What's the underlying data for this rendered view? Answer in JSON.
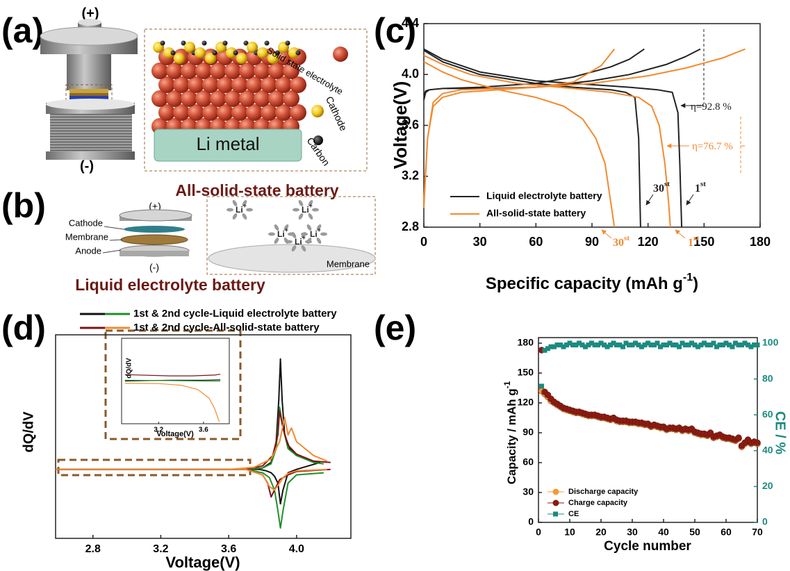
{
  "panels": {
    "a": {
      "label": "(a)",
      "positive": "(+)",
      "negative": "(-)",
      "anode": "Li metal",
      "electrolyte": "Solid state electrolyte",
      "cathode": "Cathode",
      "carbon": "Carbon",
      "caption": "All-solid-state battery"
    },
    "b": {
      "label": "(b)",
      "positive": "(+)",
      "negative": "(-)",
      "cathode": "Cathode",
      "membrane": "Membrane",
      "anode": "Anode",
      "ion": "Li",
      "ion_charge": "+",
      "inset_membrane": "Membrane",
      "caption": "Liquid electrolyte battery"
    }
  },
  "chart_data": [
    {
      "type": "line",
      "label": "(c)",
      "xlabel": "Specific capacity (mAh g",
      "xlabel_sup": "-1",
      "xlabel_end": ")",
      "ylabel": "Voltage(V)",
      "xlim": [
        0,
        180
      ],
      "xticks": [
        0,
        30,
        60,
        90,
        120,
        150,
        180
      ],
      "ylim": [
        2.8,
        4.4
      ],
      "yticks": [
        2.8,
        3.2,
        3.6,
        {
          "value": 4,
          "label": "4.0"
        },
        4.4
      ],
      "legend": "lower left",
      "series": [
        {
          "name": "Liquid electrolyte battery",
          "color": "#222222",
          "x": [
            0,
            1,
            3,
            10,
            30,
            60,
            90,
            110,
            130,
            140,
            148,
            null,
            0,
            10,
            30,
            60,
            90,
            110,
            125,
            133,
            136,
            137,
            138,
            null,
            0,
            1,
            3,
            10,
            30,
            60,
            80,
            100,
            110,
            118,
            null,
            0,
            10,
            30,
            60,
            80,
            100,
            108,
            113,
            115,
            116
          ],
          "values": [
            3.8,
            3.86,
            3.88,
            3.89,
            3.89,
            3.9,
            3.95,
            4.0,
            4.08,
            4.14,
            4.2,
            null,
            4.2,
            4.12,
            4.02,
            3.95,
            3.92,
            3.9,
            3.88,
            3.86,
            3.7,
            3.3,
            2.8,
            null,
            3.84,
            3.87,
            3.88,
            3.89,
            3.9,
            3.93,
            3.98,
            4.06,
            4.12,
            4.2,
            null,
            4.19,
            4.1,
            4.0,
            3.93,
            3.9,
            3.88,
            3.86,
            3.82,
            3.5,
            2.8
          ]
        },
        {
          "name": "All-solid-state battery",
          "color": "#f28a30",
          "x": [
            0,
            2,
            5,
            10,
            20,
            40,
            60,
            90,
            120,
            140,
            160,
            172,
            null,
            0,
            10,
            25,
            50,
            80,
            100,
            115,
            122,
            126,
            129,
            131,
            132,
            null,
            0,
            2,
            5,
            10,
            20,
            40,
            60,
            80,
            95,
            102,
            null,
            0,
            10,
            20,
            40,
            60,
            75,
            85,
            92,
            97,
            100,
            102
          ],
          "values": [
            2.95,
            3.5,
            3.78,
            3.85,
            3.88,
            3.89,
            3.9,
            3.93,
            3.99,
            4.05,
            4.13,
            4.2,
            null,
            4.15,
            4.08,
            4.0,
            3.93,
            3.89,
            3.86,
            3.82,
            3.75,
            3.6,
            3.3,
            3.0,
            2.8,
            null,
            3.0,
            3.5,
            3.75,
            3.82,
            3.86,
            3.88,
            3.9,
            3.94,
            4.07,
            4.2,
            null,
            4.1,
            4.02,
            3.96,
            3.88,
            3.82,
            3.75,
            3.65,
            3.5,
            3.3,
            3.0,
            2.8
          ]
        }
      ],
      "annotations": [
        {
          "text": "η=92.8 %",
          "color": "#222222"
        },
        {
          "text": "η=76.7 %",
          "color": "#f28a30"
        },
        {
          "text": "30",
          "sup": "st",
          "color": "#222222"
        },
        {
          "text": "1",
          "sup": "st",
          "color": "#222222"
        },
        {
          "text": "30",
          "sup": "st",
          "color": "#f28a30"
        },
        {
          "text": "1",
          "sup": "st",
          "color": "#f28a30"
        }
      ]
    },
    {
      "type": "line",
      "label": "(d)",
      "xlabel": "Voltage(V)",
      "ylabel": "dQ/dV",
      "xlim": [
        2.58,
        4.32
      ],
      "xticks": [
        2.8,
        3.2,
        3.6,
        {
          "value": 4,
          "label": "4.0"
        }
      ],
      "ylim": [
        -1,
        1.95
      ],
      "legend": [
        {
          "label": "1st & 2nd cycle-Liquid electrolyte battery",
          "colors": [
            "#111111",
            "#1f8f2a"
          ]
        },
        {
          "label": "1st & 2nd cycle-All-solid-state battery",
          "colors": [
            "#7b1416",
            "#f28a30"
          ]
        }
      ],
      "series": [
        {
          "color": "#111111",
          "x": [
            2.58,
            3.7,
            3.8,
            3.85,
            3.88,
            3.895,
            3.905,
            3.915,
            3.93,
            3.96,
            4.0,
            4.1,
            4.14,
            null,
            4.14,
            4.0,
            3.95,
            3.92,
            3.905,
            3.89,
            3.87,
            3.85,
            3.82,
            3.78,
            3.6,
            2.58
          ],
          "values": [
            0,
            0,
            0.02,
            0.1,
            0.4,
            1.0,
            1.6,
            1.0,
            0.5,
            0.3,
            0.2,
            0.12,
            0.1,
            null,
            0.1,
            0,
            -0.05,
            -0.3,
            -0.5,
            -0.2,
            -0.1,
            -0.05,
            -0.02,
            0,
            0,
            0
          ]
        },
        {
          "color": "#1f8f2a",
          "x": [
            2.58,
            3.7,
            3.8,
            3.85,
            3.88,
            3.9,
            3.92,
            3.95,
            4.0,
            4.1,
            4.16,
            null,
            4.16,
            4.0,
            3.95,
            3.92,
            3.905,
            3.89,
            3.87,
            3.84,
            3.8,
            3.7,
            2.58
          ],
          "values": [
            0,
            0,
            0.02,
            0.08,
            0.3,
            0.9,
            0.6,
            0.3,
            0.2,
            0.1,
            0.08,
            null,
            -0.05,
            -0.08,
            -0.2,
            -0.6,
            -0.85,
            -0.6,
            -0.3,
            -0.12,
            -0.05,
            0,
            0
          ]
        },
        {
          "color": "#7b1416",
          "x": [
            2.58,
            3.7,
            3.8,
            3.86,
            3.89,
            3.9,
            3.92,
            3.95,
            4.0,
            4.1,
            4.2,
            null,
            4.2,
            4.0,
            3.95,
            3.9,
            3.87,
            3.85,
            3.83,
            3.8,
            3.7,
            2.58
          ],
          "values": [
            0,
            0,
            0.05,
            0.2,
            0.5,
            0.85,
            0.6,
            0.35,
            0.22,
            0.12,
            0.1,
            null,
            0,
            -0.03,
            -0.08,
            -0.15,
            -0.3,
            -0.4,
            -0.2,
            -0.08,
            0,
            0
          ]
        },
        {
          "color": "#f28a30",
          "x": [
            2.58,
            3.6,
            3.75,
            3.85,
            3.9,
            3.93,
            3.95,
            3.97,
            4.0,
            4.1,
            4.18,
            null,
            4.18,
            4.0,
            3.95,
            3.92,
            3.9,
            3.87,
            3.84,
            3.8,
            3.7,
            2.58
          ],
          "values": [
            0,
            0,
            0.03,
            0.15,
            0.4,
            0.75,
            0.5,
            0.6,
            0.4,
            0.2,
            0.12,
            null,
            0,
            -0.02,
            -0.06,
            -0.12,
            -0.2,
            -0.3,
            -0.25,
            -0.08,
            0,
            0
          ]
        }
      ],
      "inset": {
        "xlabel": "Voltage(V)",
        "ylabel": "dQ/dV",
        "xlim": [
          2.87,
          3.83
        ],
        "xticks": [
          3.2,
          3.6
        ],
        "ylim": [
          -1,
          1
        ],
        "series": [
          {
            "color": "#7b1416",
            "x": [
              2.9,
              3.3,
              3.5,
              3.7,
              3.75
            ],
            "values": [
              0.15,
              0.12,
              0.12,
              0.14,
              0.16
            ]
          },
          {
            "color": "#111111",
            "x": [
              2.9,
              3.3,
              3.6,
              3.75
            ],
            "values": [
              0,
              0.02,
              0.02,
              0.03
            ]
          },
          {
            "color": "#1f8f2a",
            "x": [
              2.9,
              3.3,
              3.6,
              3.75
            ],
            "values": [
              0.02,
              0.01,
              0,
              0
            ]
          },
          {
            "color": "#f28a30",
            "x": [
              2.9,
              3.2,
              3.4,
              3.55,
              3.65,
              3.7,
              3.74
            ],
            "values": [
              -0.05,
              -0.06,
              -0.1,
              -0.2,
              -0.4,
              -0.65,
              -0.95
            ]
          }
        ]
      }
    },
    {
      "type": "scatter",
      "label": "(e)",
      "xlabel": "Cycle number",
      "ylabel": "Capacity / mAh g",
      "ylabel_sup": "-1",
      "y2label": "CE / %",
      "xlim": [
        0,
        70
      ],
      "xticks": [
        0,
        10,
        20,
        30,
        40,
        50,
        60,
        70
      ],
      "ylim": [
        0,
        180
      ],
      "yticks": [
        0,
        30,
        60,
        90,
        120,
        150,
        180
      ],
      "y2lim": [
        0,
        100
      ],
      "y2ticks": [
        0,
        20,
        40,
        60,
        80,
        100
      ],
      "y2color": "#1c8a80",
      "x": [
        1,
        2,
        3,
        4,
        5,
        6,
        7,
        8,
        9,
        10,
        11,
        12,
        13,
        14,
        15,
        16,
        17,
        18,
        19,
        20,
        21,
        22,
        23,
        24,
        25,
        26,
        27,
        28,
        29,
        30,
        31,
        32,
        33,
        34,
        35,
        36,
        37,
        38,
        39,
        40,
        41,
        42,
        43,
        44,
        45,
        46,
        47,
        48,
        49,
        50,
        51,
        52,
        53,
        54,
        55,
        56,
        57,
        58,
        59,
        60,
        61,
        62,
        63,
        64,
        65,
        66,
        67,
        68,
        69,
        70
      ],
      "series": [
        {
          "name": "Discharge capacity",
          "color": "#f39a35",
          "marker": "circle",
          "values": [
            132,
            129,
            126,
            122,
            120,
            118,
            116,
            114,
            113,
            112,
            111,
            110,
            110,
            109,
            108,
            107,
            107,
            107,
            106,
            105,
            105,
            104,
            103,
            104,
            102,
            101,
            101,
            101,
            100,
            100,
            100,
            99,
            99,
            98,
            98,
            96,
            97,
            96,
            95,
            95,
            93,
            94,
            94,
            93,
            94,
            92,
            93,
            92,
            93,
            90,
            89,
            88,
            88,
            87,
            89,
            85,
            86,
            87,
            85,
            84,
            84,
            83,
            82,
            84,
            76,
            79,
            82,
            79,
            80,
            79
          ]
        },
        {
          "name": "Charge capacity",
          "color": "#8b1a12",
          "marker": "circle",
          "values": [
            173,
            131,
            128,
            124,
            121,
            119,
            117,
            115,
            114,
            113,
            112,
            111,
            111,
            110,
            109,
            108,
            108,
            108,
            107,
            106,
            106,
            105,
            104,
            105,
            103,
            102,
            102,
            102,
            101,
            101,
            101,
            100,
            100,
            99,
            99,
            97,
            98,
            97,
            96,
            96,
            94,
            95,
            95,
            94,
            95,
            93,
            94,
            93,
            94,
            91,
            90,
            89,
            89,
            88,
            90,
            86,
            87,
            88,
            86,
            85,
            85,
            84,
            83,
            85,
            77,
            80,
            83,
            80,
            81,
            80
          ]
        },
        {
          "name": "CE",
          "color": "#1c8a80",
          "marker": "square",
          "axis": "y2",
          "values": [
            76,
            96,
            97,
            98,
            98,
            99,
            99,
            98,
            99,
            100,
            99,
            99,
            100,
            99,
            98,
            99,
            100,
            99,
            99,
            100,
            99,
            98,
            99,
            100,
            99,
            99,
            98,
            100,
            99,
            99,
            100,
            99,
            98,
            99,
            100,
            99,
            99,
            100,
            98,
            99,
            99,
            100,
            99,
            99,
            98,
            100,
            99,
            99,
            100,
            99,
            98,
            99,
            100,
            99,
            99,
            100,
            98,
            99,
            99,
            100,
            99,
            98,
            100,
            99,
            99,
            100,
            99,
            98,
            99,
            99
          ]
        }
      ]
    }
  ]
}
